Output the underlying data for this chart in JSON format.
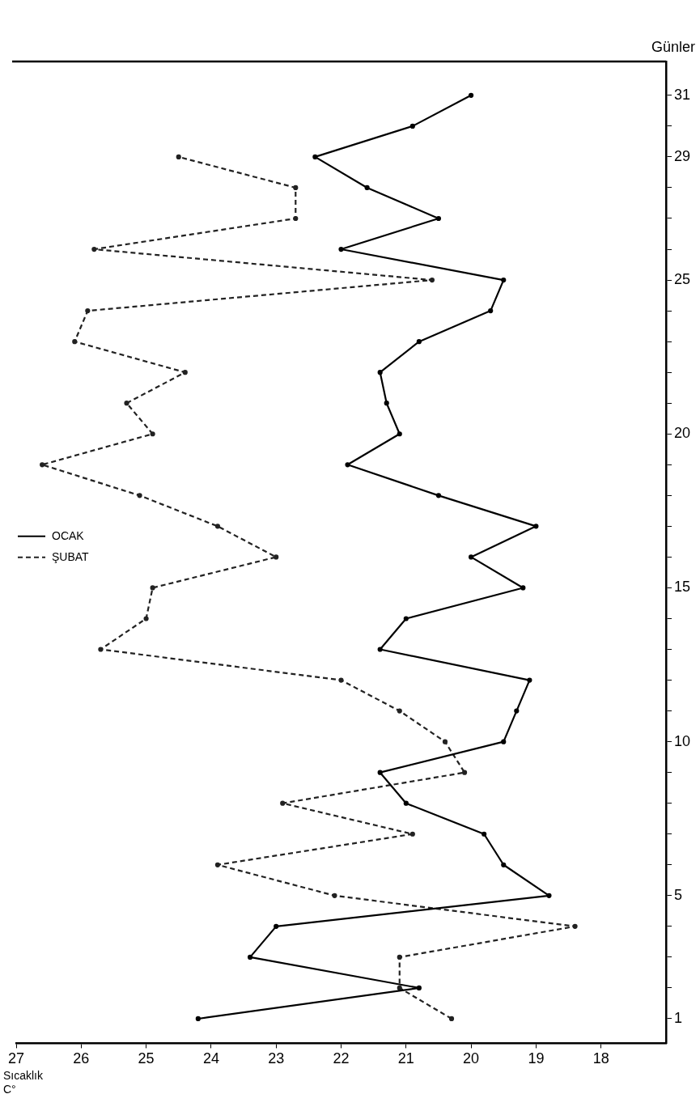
{
  "chart_data": {
    "type": "line",
    "xlabel": "Sıcaklık C°",
    "ylabel": "Günler",
    "series": [
      {
        "name": "OCAK",
        "color": "#000000",
        "line_style": "solid",
        "x": [
          24.2,
          20.8,
          23.4,
          23.0,
          18.8,
          19.5,
          19.8,
          21.0,
          21.4,
          19.5,
          19.3,
          19.1,
          21.4,
          21.0,
          19.2,
          20.0,
          19.0,
          20.5,
          21.9,
          21.1,
          21.3,
          21.4,
          20.8,
          19.7,
          19.5,
          22.0,
          20.5,
          21.6,
          22.4,
          20.9,
          20.0
        ],
        "values": [
          1,
          2,
          3,
          4,
          5,
          6,
          7,
          8,
          9,
          10,
          11,
          12,
          13,
          14,
          15,
          16,
          17,
          18,
          19,
          20,
          21,
          22,
          23,
          24,
          25,
          26,
          27,
          28,
          29,
          30,
          31
        ]
      },
      {
        "name": "ŞUBAT",
        "color": "#222222",
        "line_style": "dashed",
        "x": [
          20.3,
          21.1,
          21.1,
          18.4,
          22.1,
          23.9,
          20.9,
          22.9,
          20.1,
          20.4,
          21.1,
          22.0,
          25.7,
          25.0,
          24.9,
          23.0,
          23.9,
          25.1,
          26.6,
          24.9,
          25.3,
          24.4,
          26.1,
          25.9,
          20.6,
          25.8,
          22.7,
          22.7,
          24.5
        ],
        "values": [
          1,
          2,
          3,
          4,
          5,
          6,
          7,
          8,
          9,
          10,
          11,
          12,
          13,
          14,
          15,
          16,
          17,
          18,
          19,
          20,
          21,
          22,
          23,
          24,
          25,
          26,
          27,
          28,
          29
        ]
      }
    ],
    "xlim": [
      27,
      17
    ],
    "xticks": [
      27,
      26,
      25,
      24,
      23,
      22,
      21,
      20,
      19,
      18
    ],
    "ylim": [
      0.2,
      32.1
    ],
    "yticks": [
      1,
      {
        "value": 2,
        "label": null
      },
      {
        "value": 3,
        "label": null
      },
      {
        "value": 4,
        "label": null
      },
      5,
      {
        "value": 6,
        "label": null
      },
      {
        "value": 7,
        "label": null
      },
      {
        "value": 8,
        "label": null
      },
      {
        "value": 9,
        "label": null
      },
      10,
      {
        "value": 11,
        "label": null
      },
      {
        "value": 12,
        "label": null
      },
      {
        "value": 13,
        "label": null
      },
      {
        "value": 14,
        "label": null
      },
      15,
      {
        "value": 16,
        "label": null
      },
      {
        "value": 17,
        "label": null
      },
      {
        "value": 18,
        "label": null
      },
      {
        "value": 19,
        "label": null
      },
      20,
      {
        "value": 21,
        "label": null
      },
      {
        "value": 22,
        "label": null
      },
      {
        "value": 23,
        "label": null
      },
      {
        "value": 24,
        "label": null
      },
      25,
      {
        "value": 26,
        "label": null
      },
      {
        "value": 27,
        "label": null
      },
      {
        "value": 28,
        "label": null
      },
      29,
      {
        "value": 30,
        "label": null
      },
      31
    ],
    "grid": false,
    "legend": "left",
    "marker": "circle"
  }
}
